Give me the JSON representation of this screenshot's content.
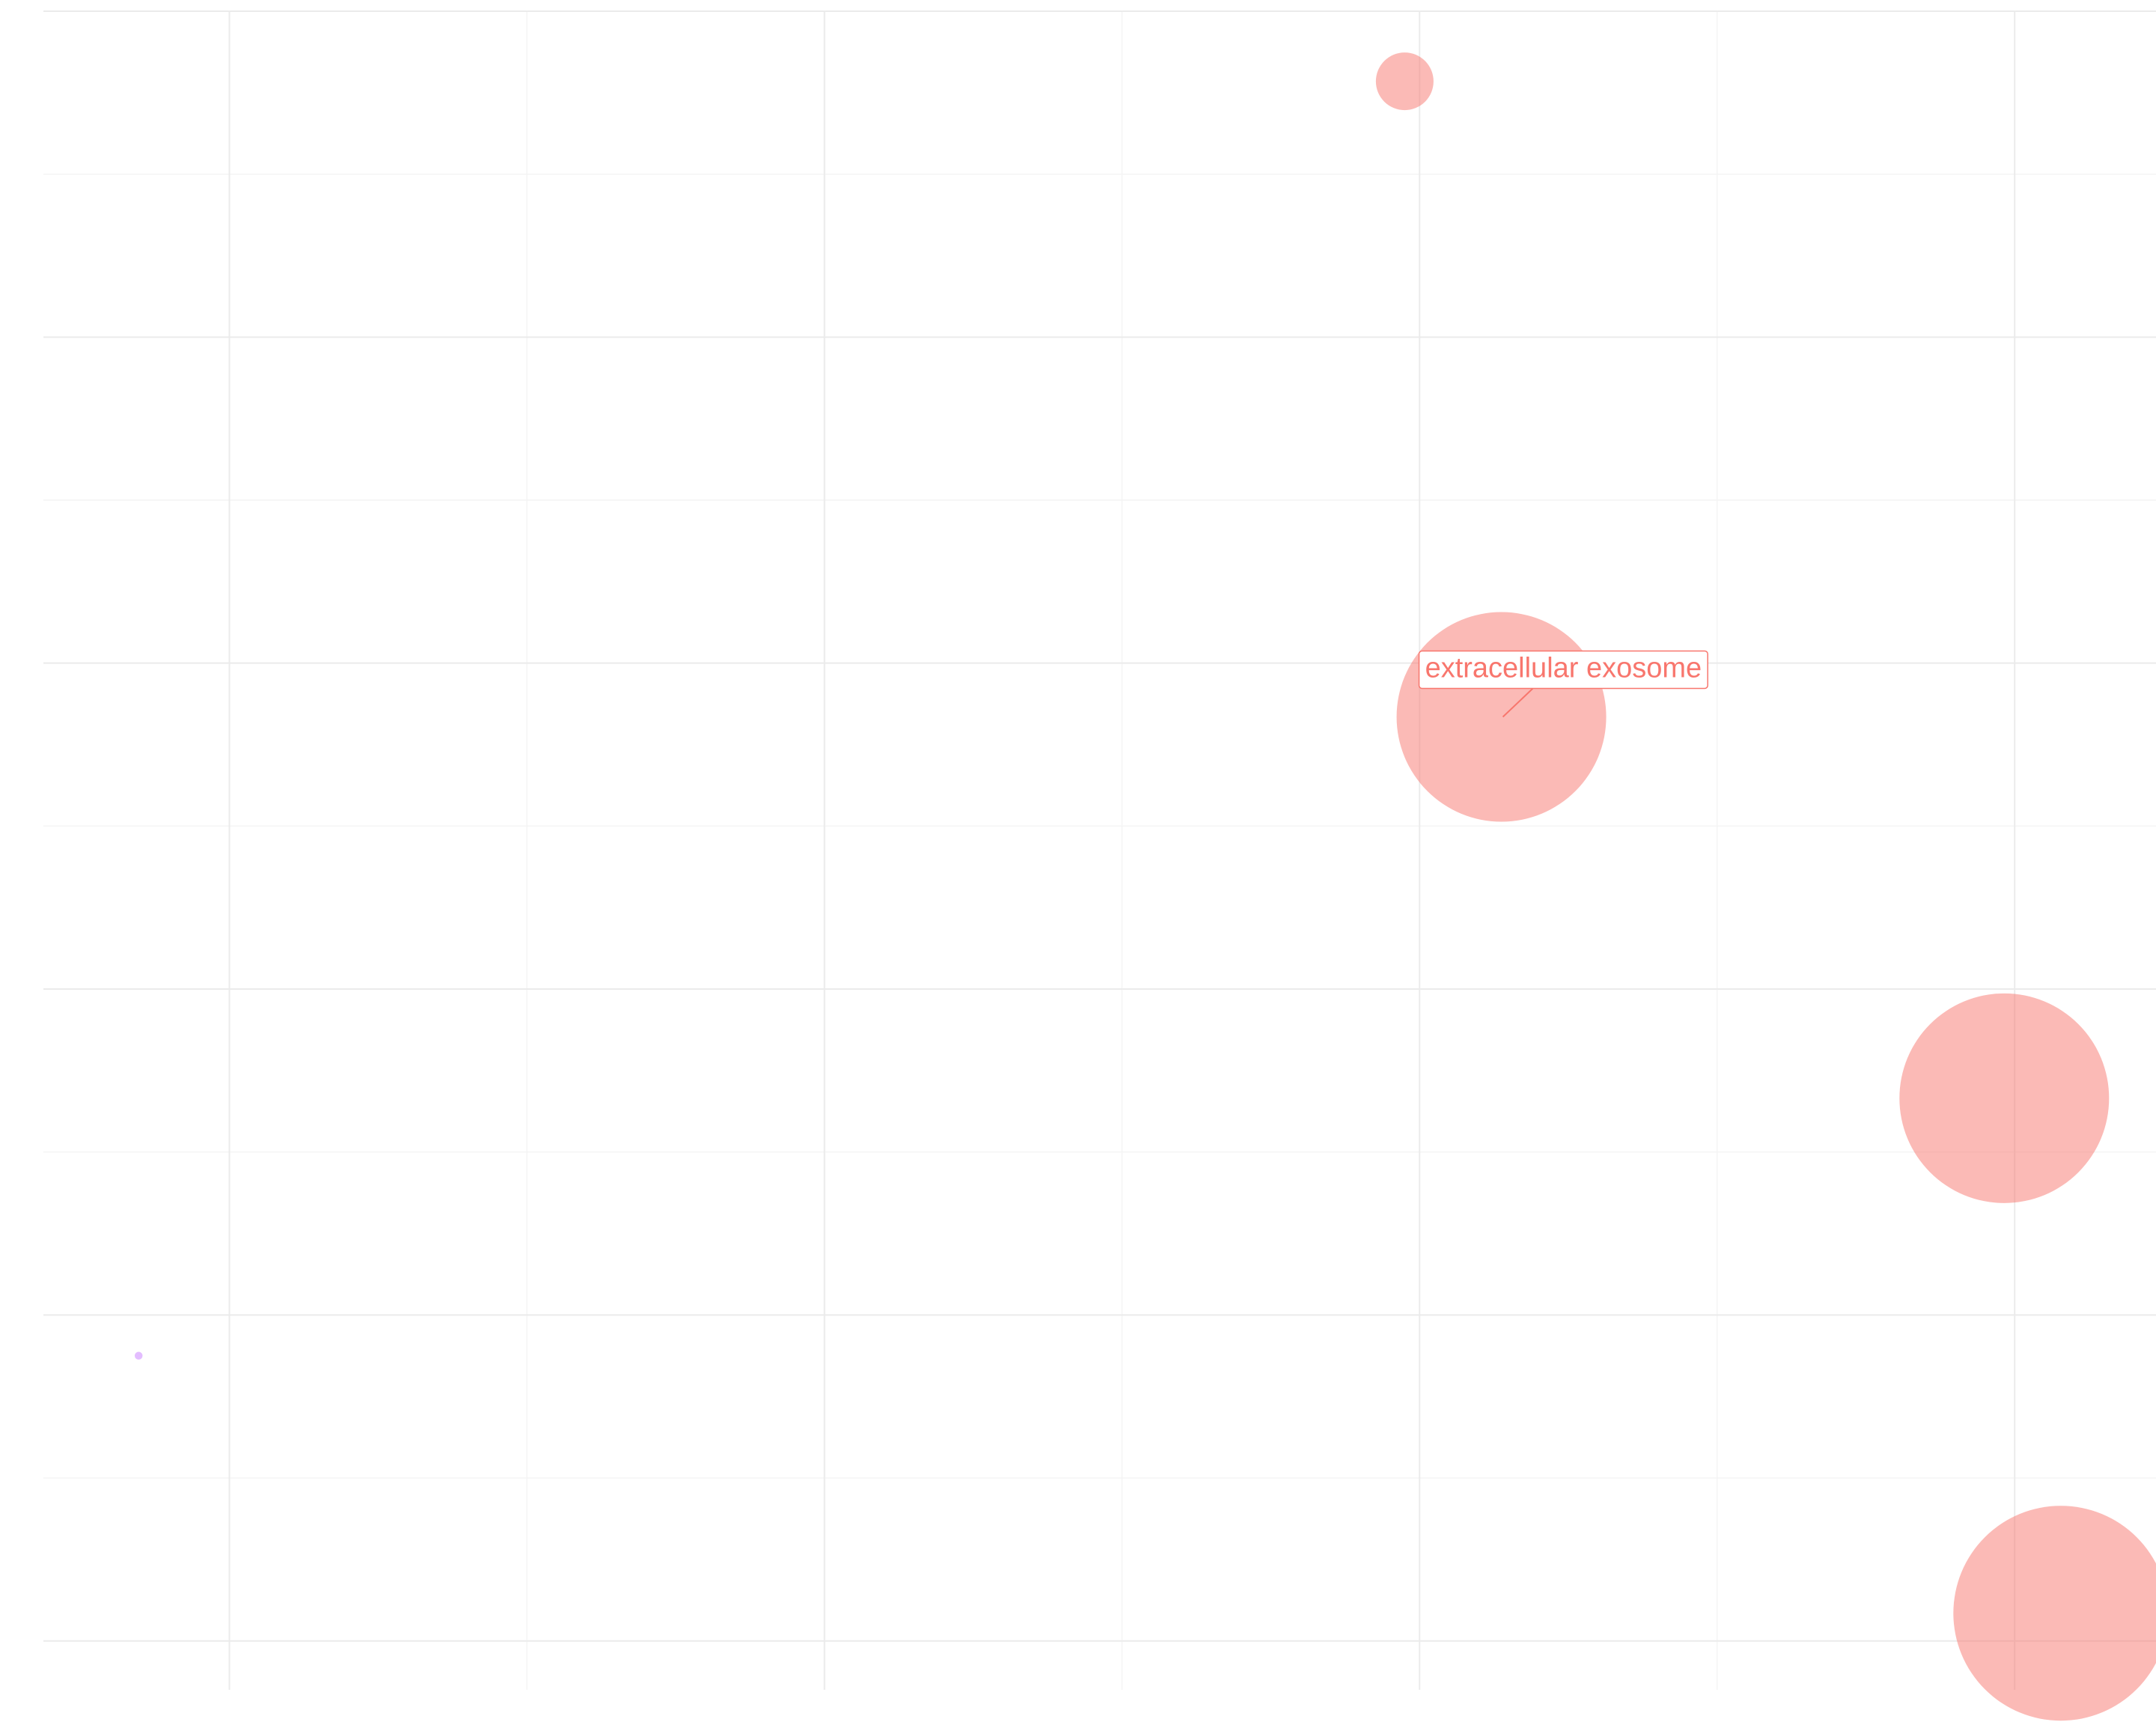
{
  "chart_data": {
    "type": "scatter",
    "title": "",
    "xlabel": "",
    "ylabel": "",
    "xlim": [
      0.0,
      7.1
    ],
    "ylim": [
      0.0,
      10.3
    ],
    "x_major_ticks": [
      0.625,
      2.625,
      4.625,
      6.625
    ],
    "x_minor_ticks": [
      1.625,
      3.625,
      5.625
    ],
    "y_major_ticks": [
      0.3,
      2.3,
      4.3,
      6.3,
      8.3,
      10.3
    ],
    "y_minor_ticks": [
      1.3,
      3.3,
      5.3,
      7.3,
      9.3
    ],
    "grid": true,
    "legend": "none",
    "point_color": "#f8766d",
    "small_point_color": "#c77cff",
    "points": [
      {
        "x": 4.575,
        "y": 9.87,
        "size": 1.1
      },
      {
        "x": 4.9,
        "y": 5.97,
        "size": 4.0,
        "label": "extracellular exosome"
      },
      {
        "x": 6.59,
        "y": 3.63,
        "size": 4.0
      },
      {
        "x": 6.78,
        "y": 0.47,
        "size": 4.1
      },
      {
        "x": 0.32,
        "y": 2.05,
        "size": 0.15,
        "color": "#c77cff"
      }
    ]
  }
}
